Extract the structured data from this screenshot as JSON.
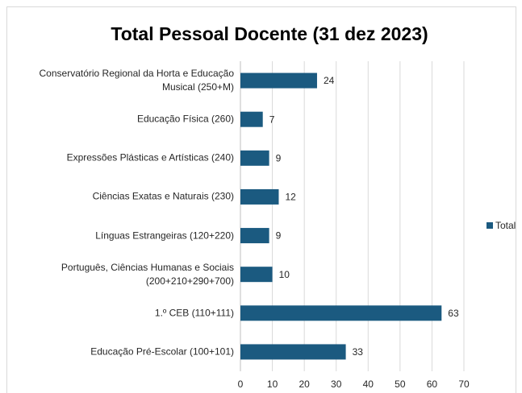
{
  "chart_data": {
    "type": "bar",
    "orientation": "horizontal",
    "title": "Total Pessoal Docente (31 dez 2023)",
    "categories": [
      "Conservatório Regional da Horta e Educação Musical (250+M)",
      "Educação Física (260)",
      "Expressões Plásticas e Artísticas (240)",
      "Ciências Exatas e Naturais (230)",
      "Línguas Estrangeiras (120+220)",
      "Português, Ciências Humanas e Sociais (200+210+290+700)",
      "1.º CEB (110+111)",
      "Educação Pré-Escolar (100+101)"
    ],
    "series": [
      {
        "name": "Total",
        "color": "#1b5a80",
        "values": [
          24,
          7,
          9,
          12,
          9,
          10,
          63,
          33
        ]
      }
    ],
    "xlim": [
      0,
      70
    ],
    "xticks": [
      0,
      10,
      20,
      30,
      40,
      50,
      60,
      70
    ],
    "grid": true,
    "legend": "right"
  }
}
